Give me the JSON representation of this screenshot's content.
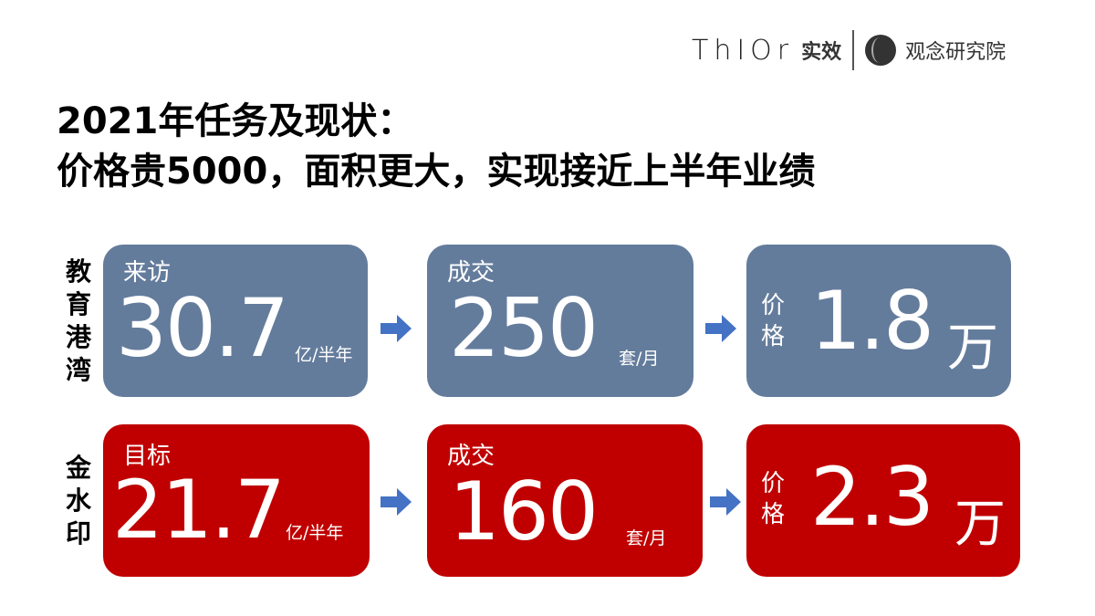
{
  "logo": {
    "brand": "ThIOr",
    "brand_cn": "实效",
    "institute": "观念研究院"
  },
  "title": {
    "line1": "2021年任务及现状：",
    "line2": "价格贵5000，面积更大，实现接近上半年业绩"
  },
  "colors": {
    "row1": "#647c9c",
    "row2": "#c00000",
    "arrow": "#4472c4"
  },
  "rows": [
    {
      "label": "教育港湾",
      "visits": {
        "label": "来访",
        "value": "30.7",
        "unit": "亿/半年"
      },
      "deals": {
        "label": "成交",
        "value": "250",
        "unit": "套/月"
      },
      "price": {
        "label": "价格",
        "value": "1.8",
        "unit": "万"
      }
    },
    {
      "label": "金水印",
      "visits": {
        "label": "目标",
        "value": "21.7",
        "unit": "亿/半年"
      },
      "deals": {
        "label": "成交",
        "value": "160",
        "unit": "套/月"
      },
      "price": {
        "label": "价格",
        "value": "2.3",
        "unit": "万"
      }
    }
  ]
}
